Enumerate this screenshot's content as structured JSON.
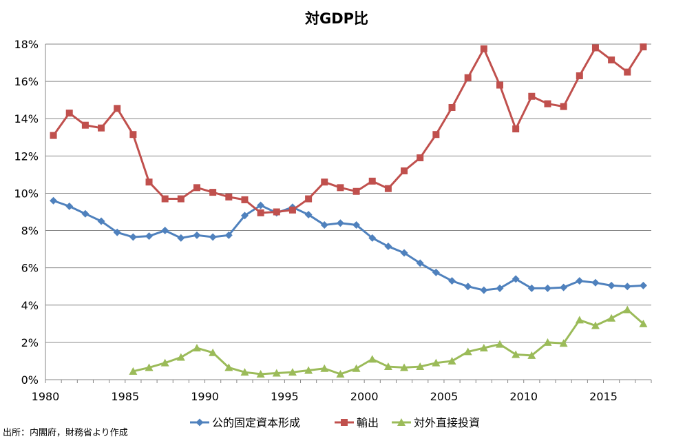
{
  "chart_data": {
    "type": "line",
    "title": "対GDP比",
    "xlabel": "",
    "ylabel": "",
    "xlim": [
      1980,
      2017
    ],
    "ylim": [
      0,
      18
    ],
    "y_ticks": [
      "0%",
      "2%",
      "4%",
      "6%",
      "8%",
      "10%",
      "12%",
      "14%",
      "16%",
      "18%"
    ],
    "x_ticks": [
      "1980",
      "1985",
      "1990",
      "1995",
      "2000",
      "2005",
      "2010",
      "2015"
    ],
    "grid": "horizontal",
    "legend_position": "bottom",
    "source": "出所：内閣府，財務省より作成",
    "series": [
      {
        "name": "公的固定資本形成",
        "color": "#4F81BD",
        "marker": "diamond",
        "x": [
          1980,
          1981,
          1982,
          1983,
          1984,
          1985,
          1986,
          1987,
          1988,
          1989,
          1990,
          1991,
          1992,
          1993,
          1994,
          1995,
          1996,
          1997,
          1998,
          1999,
          2000,
          2001,
          2002,
          2003,
          2004,
          2005,
          2006,
          2007,
          2008,
          2009,
          2010,
          2011,
          2012,
          2013,
          2014,
          2015,
          2016,
          2017
        ],
        "values": [
          9.6,
          9.3,
          8.9,
          8.5,
          7.9,
          7.65,
          7.7,
          8.0,
          7.6,
          7.75,
          7.65,
          7.75,
          8.8,
          9.35,
          8.95,
          9.25,
          8.85,
          8.3,
          8.4,
          8.3,
          7.6,
          7.15,
          6.8,
          6.25,
          5.75,
          5.3,
          5.0,
          4.8,
          4.9,
          5.4,
          4.9,
          4.9,
          4.95,
          5.3,
          5.2,
          5.05,
          5.0,
          5.05
        ]
      },
      {
        "name": "輸出",
        "color": "#C0504D",
        "marker": "square",
        "x": [
          1980,
          1981,
          1982,
          1983,
          1984,
          1985,
          1986,
          1987,
          1988,
          1989,
          1990,
          1991,
          1992,
          1993,
          1994,
          1995,
          1996,
          1997,
          1998,
          1999,
          2000,
          2001,
          2002,
          2003,
          2004,
          2005,
          2006,
          2007,
          2008,
          2009,
          2010,
          2011,
          2012,
          2013,
          2014,
          2015,
          2016,
          2017
        ],
        "values": [
          13.1,
          14.3,
          13.65,
          13.5,
          14.55,
          13.15,
          10.6,
          9.7,
          9.7,
          10.3,
          10.05,
          9.8,
          9.65,
          8.95,
          9.0,
          9.1,
          9.7,
          10.6,
          10.3,
          10.1,
          10.65,
          10.25,
          11.2,
          11.9,
          13.15,
          14.6,
          16.2,
          17.75,
          15.8,
          13.45,
          15.2,
          14.8,
          14.65,
          16.3,
          17.8,
          17.15,
          16.5,
          17.85
        ]
      },
      {
        "name": "対外直接投資",
        "color": "#9BBB59",
        "marker": "triangle",
        "x": [
          1985,
          1986,
          1987,
          1988,
          1989,
          1990,
          1991,
          1992,
          1993,
          1994,
          1995,
          1996,
          1997,
          1998,
          1999,
          2000,
          2001,
          2002,
          2003,
          2004,
          2005,
          2006,
          2007,
          2008,
          2009,
          2010,
          2011,
          2012,
          2013,
          2014,
          2015,
          2016,
          2017
        ],
        "values": [
          0.45,
          0.65,
          0.9,
          1.2,
          1.7,
          1.45,
          0.65,
          0.4,
          0.3,
          0.35,
          0.4,
          0.5,
          0.6,
          0.3,
          0.6,
          1.1,
          0.7,
          0.65,
          0.7,
          0.9,
          1.0,
          1.5,
          1.7,
          1.9,
          1.35,
          1.3,
          2.0,
          1.95,
          3.2,
          2.9,
          3.3,
          3.75,
          3.0
        ]
      }
    ]
  }
}
